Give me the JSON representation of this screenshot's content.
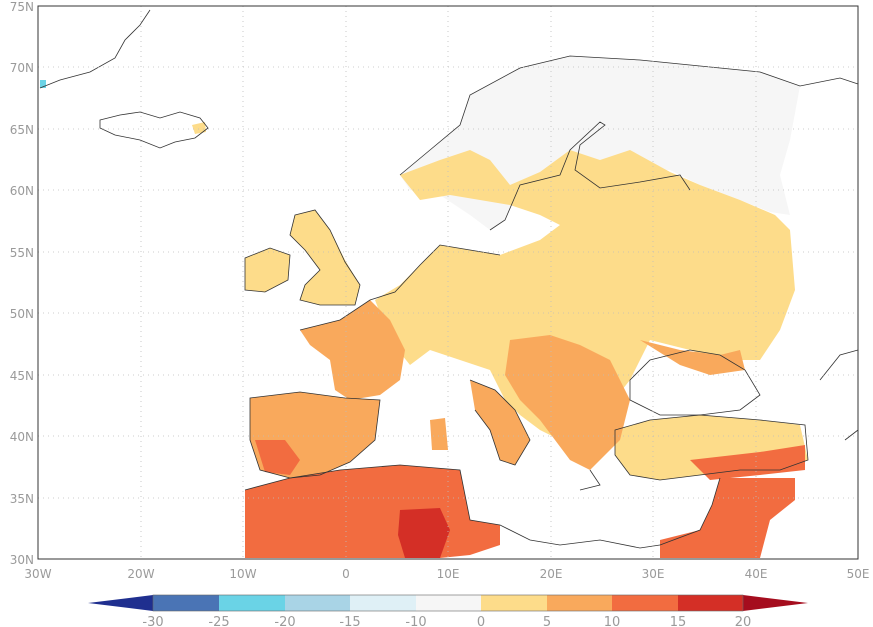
{
  "map": {
    "lat_labels": [
      "75N",
      "70N",
      "65N",
      "60N",
      "55N",
      "50N",
      "45N",
      "40N",
      "35N",
      "30N"
    ],
    "lon_labels": [
      "30W",
      "20W",
      "10W",
      "0",
      "10E",
      "20E",
      "30E",
      "40E",
      "50E"
    ],
    "lat_values": [
      75,
      70,
      65,
      60,
      55,
      50,
      45,
      40,
      35,
      30
    ],
    "lon_values": [
      -30,
      -20,
      -10,
      0,
      10,
      20,
      30,
      40,
      50
    ],
    "extent": {
      "lon_min": -30,
      "lon_max": 50,
      "lat_min": 30,
      "lat_max": 75
    },
    "grid": "dotted"
  },
  "colorbar": {
    "labels": [
      "-30",
      "-25",
      "-20",
      "-15",
      "-10",
      "0",
      "5",
      "10",
      "15",
      "20"
    ],
    "colors": [
      "#1f2f8f",
      "#4a74b5",
      "#6ad3e6",
      "#a9d4e6",
      "#dff0f6",
      "#f6f6f6",
      "#fddc8a",
      "#f9a95c",
      "#f26c40",
      "#d42f26",
      "#a50d1e"
    ],
    "extend": "both"
  }
}
